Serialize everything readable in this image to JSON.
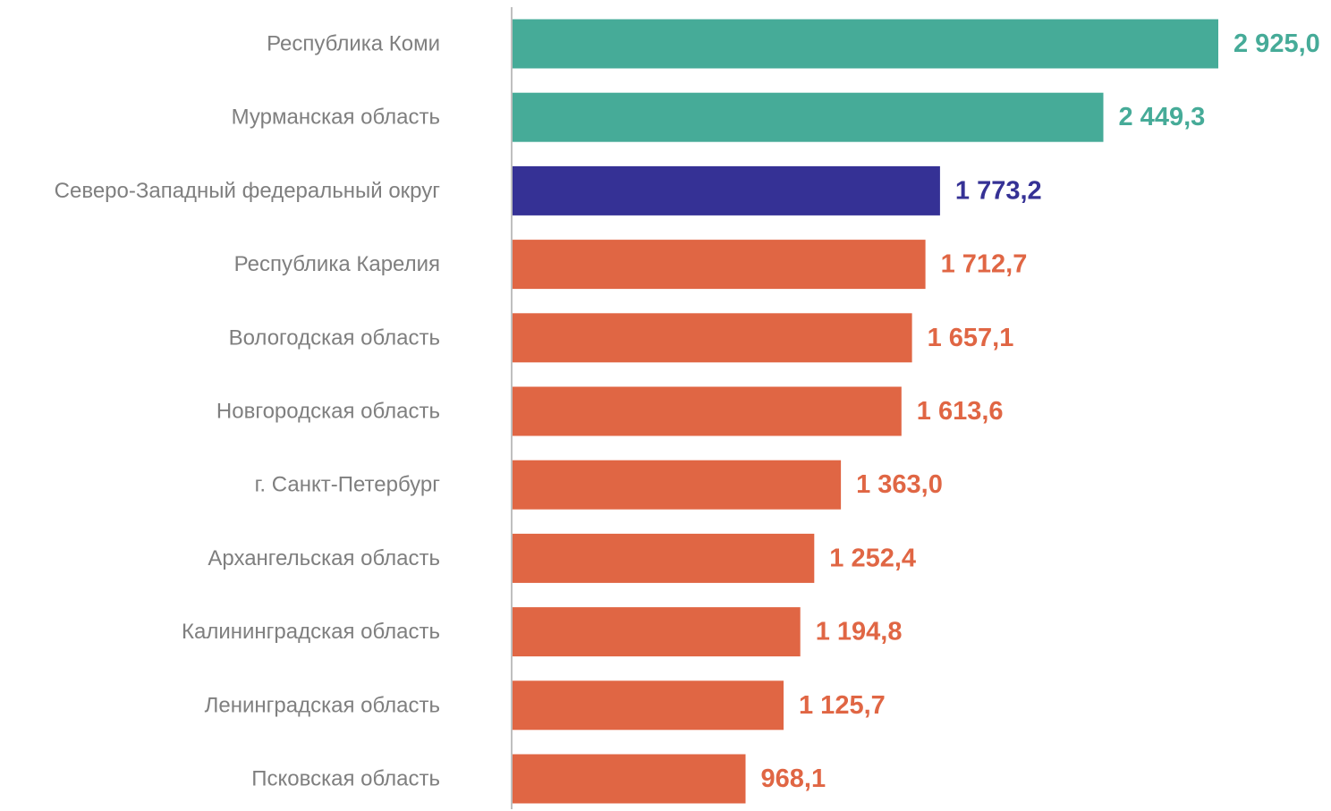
{
  "chart_data": {
    "type": "bar",
    "orientation": "horizontal",
    "categories": [
      "Республика Коми",
      "Мурманская область",
      "Северо-Западный федеральный округ",
      "Республика Карелия",
      "Вологодская область",
      "Новгородская область",
      "г. Санкт-Петербург",
      "Архангельская область",
      "Калининградская область",
      "Ленинградская область",
      "Псковская область"
    ],
    "values": [
      2925.0,
      2449.3,
      1773.2,
      1712.7,
      1657.1,
      1613.6,
      1363.0,
      1252.4,
      1194.8,
      1125.7,
      968.1
    ],
    "value_labels": [
      "2 925,0",
      "2 449,3",
      "1 773,2",
      "1 712,7",
      "1 657,1",
      "1 613,6",
      "1 363,0",
      "1 252,4",
      "1 194,8",
      "1 125,7",
      "968,1"
    ],
    "bar_colors": [
      "#46ab98",
      "#46ab98",
      "#353195",
      "#e06644",
      "#e06644",
      "#e06644",
      "#e06644",
      "#e06644",
      "#e06644",
      "#e06644",
      "#e06644"
    ],
    "xlim": [
      0,
      2925.0
    ],
    "grid": false,
    "legend": "none",
    "title": "",
    "xlabel": "",
    "ylabel": ""
  },
  "colors": {
    "axis_line": "#bfbfbf",
    "category_text": "#7f7f7f"
  }
}
